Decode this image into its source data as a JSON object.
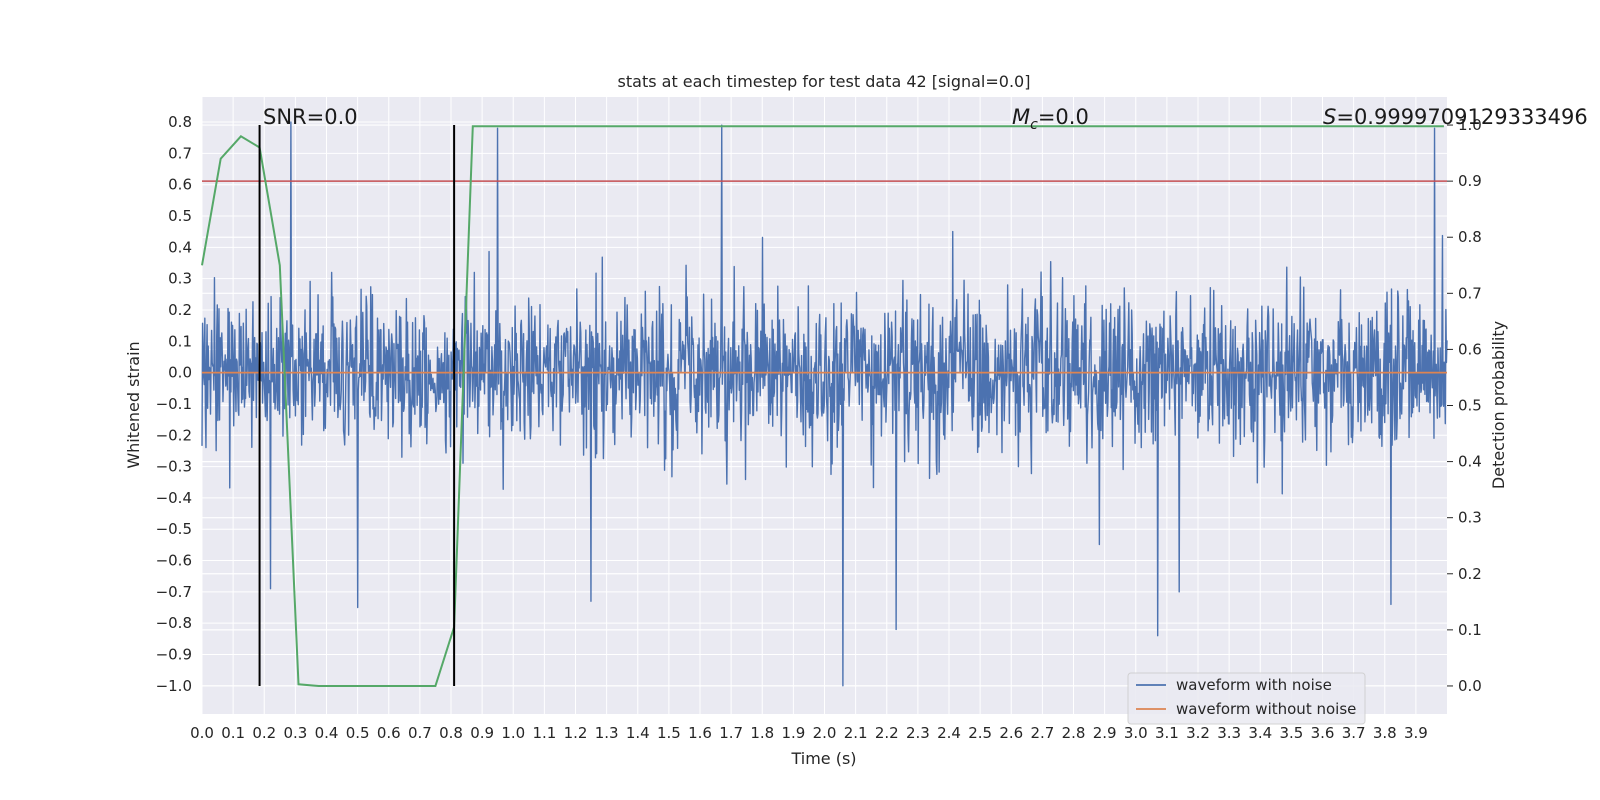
{
  "chart_data": {
    "type": "line",
    "title": "stats at each timestep for test data 42 [signal=0.0]",
    "xlabel": "Time (s)",
    "ylabel": "Whitened strain",
    "y2label": "Detection probability",
    "xlim": [
      0.0,
      4.0
    ],
    "ylim": [
      -1.09,
      0.88
    ],
    "y2lim": [
      -0.05,
      1.05
    ],
    "xticks": [
      "0.0",
      "0.1",
      "0.2",
      "0.3",
      "0.4",
      "0.5",
      "0.6",
      "0.7",
      "0.8",
      "0.9",
      "1.0",
      "1.1",
      "1.2",
      "1.3",
      "1.4",
      "1.5",
      "1.6",
      "1.7",
      "1.8",
      "1.9",
      "2.0",
      "2.1",
      "2.2",
      "2.3",
      "2.4",
      "2.5",
      "2.6",
      "2.7",
      "2.8",
      "2.9",
      "3.0",
      "3.1",
      "3.2",
      "3.3",
      "3.4",
      "3.5",
      "3.6",
      "3.7",
      "3.8",
      "3.9"
    ],
    "yticks": [
      "0.8",
      "0.7",
      "0.6",
      "0.5",
      "0.4",
      "0.3",
      "0.2",
      "0.1",
      "0.0",
      "−0.1",
      "−0.2",
      "−0.3",
      "−0.4",
      "−0.5",
      "−0.6",
      "−0.7",
      "−0.8",
      "−0.9",
      "−1.0"
    ],
    "y2ticks": [
      "1.0",
      "0.9",
      "0.8",
      "0.7",
      "0.6",
      "0.5",
      "0.4",
      "0.3",
      "0.2",
      "0.1",
      "0.0"
    ],
    "series": [
      {
        "name": "waveform with noise",
        "color": "#4c72b0",
        "kind": "noise",
        "amplitude_typical": 0.35,
        "noise_seed": 42,
        "samples": 2200
      },
      {
        "name": "waveform without noise",
        "color": "#dd8452",
        "kind": "flat",
        "value": 0.0
      }
    ],
    "detection_probability": {
      "color": "#55a868",
      "x": [
        0.0,
        0.06,
        0.125,
        0.185,
        0.25,
        0.31,
        0.375,
        0.5,
        0.6,
        0.75,
        0.81,
        0.87,
        1.0,
        2.0,
        3.0,
        3.99
      ],
      "y": [
        0.75,
        0.94,
        0.98,
        0.96,
        0.75,
        0.003,
        0.0,
        0.0,
        0.0,
        0.0,
        0.105,
        0.998,
        0.998,
        0.998,
        0.998,
        0.998
      ]
    },
    "threshold": {
      "value": 0.9,
      "color": "#c44e52"
    },
    "vlines": [
      0.185,
      0.81
    ],
    "spikes": [
      {
        "x": 0.285,
        "y": 0.8
      },
      {
        "x": 0.95,
        "y": 0.78
      },
      {
        "x": 1.67,
        "y": 0.79
      },
      {
        "x": 3.96,
        "y": 0.78
      },
      {
        "x": 2.06,
        "y": -1.0
      },
      {
        "x": 3.07,
        "y": -0.84
      },
      {
        "x": 0.5,
        "y": -0.75
      },
      {
        "x": 3.82,
        "y": -0.74
      },
      {
        "x": 2.23,
        "y": -0.82
      },
      {
        "x": 0.22,
        "y": -0.69
      },
      {
        "x": 1.25,
        "y": -0.73
      },
      {
        "x": 3.14,
        "y": -0.7
      }
    ],
    "annotations": {
      "snr": "SNR=0.0",
      "mc_symbol": "M",
      "mc_sub": "c",
      "mc_value": "=0.0",
      "s_symbol": "S",
      "s_value": "=0.9999709129333496"
    },
    "legend": {
      "position": "bottom-right",
      "entries": [
        "waveform with noise",
        "waveform without noise"
      ]
    }
  }
}
